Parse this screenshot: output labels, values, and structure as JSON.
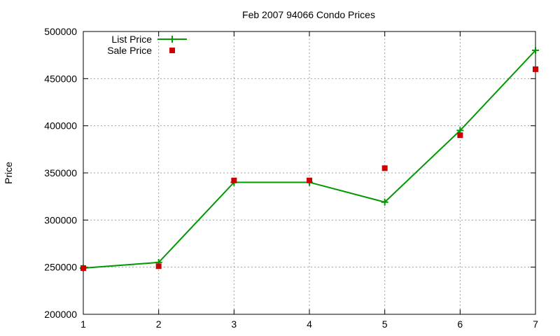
{
  "chart_data": {
    "type": "line",
    "title": "Feb 2007 94066 Condo Prices",
    "xlabel": "",
    "ylabel": "Price",
    "x": [
      1,
      2,
      3,
      4,
      5,
      6,
      7
    ],
    "xlim": [
      1,
      7
    ],
    "ylim": [
      200000,
      500000
    ],
    "x_ticks": [
      "1",
      "2",
      "3",
      "4",
      "5",
      "6",
      "7"
    ],
    "y_ticks": [
      "200000",
      "250000",
      "300000",
      "350000",
      "400000",
      "450000",
      "500000"
    ],
    "grid": true,
    "legend_position": "top-left",
    "series": [
      {
        "name": "List Price",
        "style": "line-with-plus-markers",
        "color": "#009900",
        "values": [
          249000,
          255000,
          340000,
          340000,
          319000,
          395000,
          480000
        ]
      },
      {
        "name": "Sale Price",
        "style": "square-markers",
        "color": "#cc0000",
        "values": [
          249000,
          251000,
          342000,
          342000,
          355000,
          390000,
          460000
        ]
      }
    ]
  }
}
